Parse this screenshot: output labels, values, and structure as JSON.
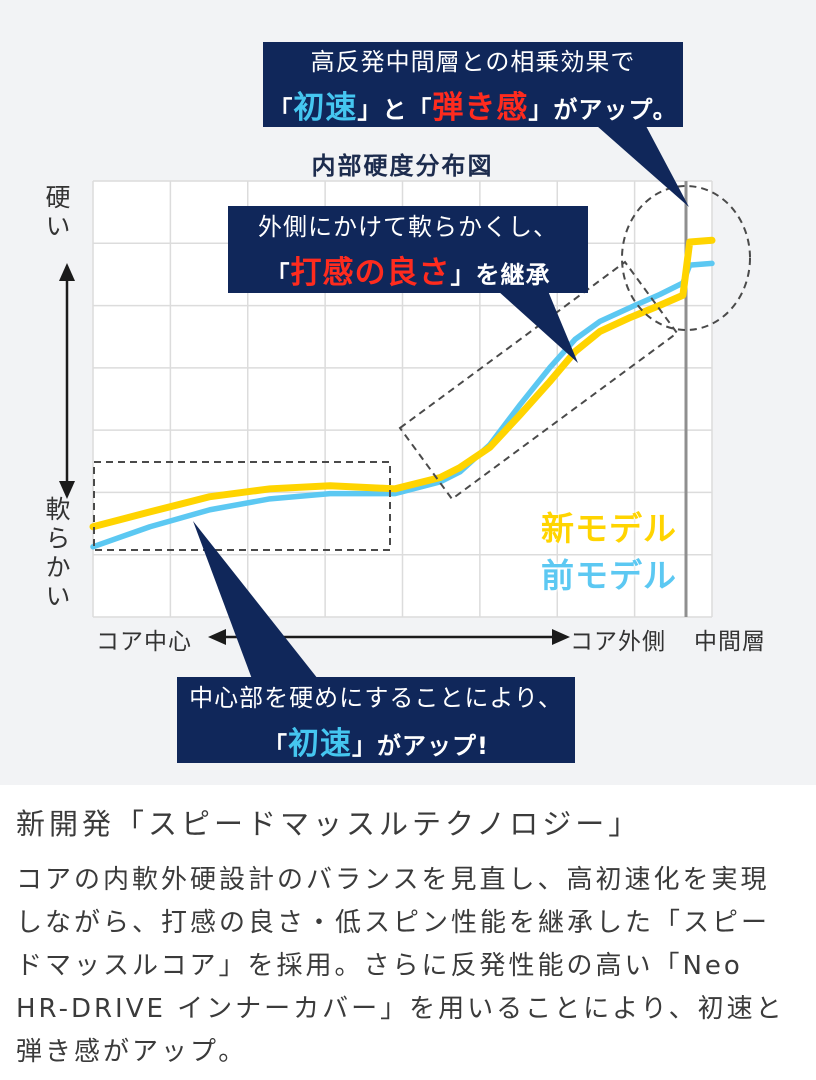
{
  "callouts": {
    "top": {
      "line1": "高反発中間層との相乗効果で",
      "l2_open1": "「",
      "l2_speed": "初速",
      "l2_mid": "」と「",
      "l2_feel": "弾き感",
      "l2_close": "」がアップ。"
    },
    "middle": {
      "line1": "外側にかけて軟らかくし、",
      "l2_open": "「",
      "l2_feel": "打感の良さ",
      "l2_close": "」を継承"
    },
    "bottom": {
      "line1": "中心部を硬めにすることにより、",
      "l2_open": "「",
      "l2_speed": "初速",
      "l2_close": "」がアップ!"
    }
  },
  "chart_data": {
    "type": "line",
    "title": "内部硬度分布図",
    "x_axis": {
      "left_label": "コア中心",
      "right_label": "コア外側",
      "far_right_label": "中間層"
    },
    "y_axis": {
      "top_label": "硬い",
      "bottom_label": "軟らかい",
      "scale": "hardness 0-100 (qualitative, soft to hard)"
    },
    "divider_x": 95.8,
    "grid": true,
    "legend_position": "inside-right-bottom",
    "series": [
      {
        "name": "新モデル",
        "color": "#ffd400",
        "x": [
          0,
          9.2,
          18.9,
          28.6,
          38.3,
          48.8,
          56.1,
          59.3,
          64.1,
          69,
          73.8,
          77.9,
          81.9,
          86.8,
          91.6,
          95.3,
          96.4,
          100
        ],
        "hardness": [
          20.7,
          24.1,
          27.6,
          29.4,
          30.1,
          29.4,
          32,
          34.3,
          38.9,
          46.4,
          54,
          60.9,
          65.5,
          68.7,
          71.5,
          73.8,
          86,
          86.4
        ]
      },
      {
        "name": "前モデル",
        "color": "#5cc8f2",
        "x": [
          0,
          9.2,
          18.9,
          28.6,
          38.3,
          48.8,
          56.1,
          59.3,
          64.1,
          69,
          73.8,
          77.9,
          81.9,
          86.8,
          91.6,
          95.3,
          96.4,
          100
        ],
        "hardness": [
          16.1,
          20.7,
          24.6,
          27.1,
          28.3,
          28.3,
          31,
          33.3,
          39.5,
          48.7,
          57.2,
          63.7,
          67.8,
          71,
          74,
          76.6,
          80.7,
          81.1
        ]
      }
    ]
  },
  "description": {
    "heading": "新開発「スピードマッスルテクノロジー」",
    "body": "コアの内軟外硬設計のバランスを見直し、高初速化を実現しながら、打感の良さ・低スピン性能を継承した「スピードマッスルコア」を採用。さらに反発性能の高い「Neo HR-DRIVE インナーカバー」を用いることにより、初速と弾き感がアップ。"
  },
  "colors": {
    "callout_bg": "#10275a",
    "accent_speed_blue": "#45c6f0",
    "accent_feel_red": "#ff2b1e",
    "series_new_yellow": "#ffd400",
    "series_prev_blue": "#5cc8f2",
    "divider_gray": "#8f8f8f"
  }
}
